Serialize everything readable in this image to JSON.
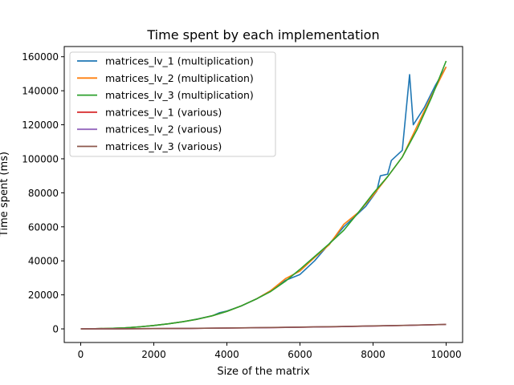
{
  "chart_data": {
    "type": "line",
    "title": "Time spent by each implementation",
    "xlabel": "Size of the matrix",
    "ylabel": "Time spent (ms)",
    "xlim": [
      -450,
      10450
    ],
    "ylim": [
      -8000,
      166000
    ],
    "xticks": [
      0,
      2000,
      4000,
      6000,
      8000,
      10000
    ],
    "yticks": [
      0,
      20000,
      40000,
      60000,
      80000,
      100000,
      120000,
      140000,
      160000
    ],
    "legend_position": "top-left",
    "grid": false,
    "series": [
      {
        "name": "matrices_lv_1 (multiplication)",
        "color": "#1f77b4",
        "x": [
          0,
          400,
          800,
          1200,
          1600,
          2000,
          2400,
          2800,
          3200,
          3600,
          3800,
          4000,
          4400,
          4800,
          5200,
          5600,
          6000,
          6200,
          6400,
          6600,
          6800,
          7200,
          7600,
          7800,
          8000,
          8100,
          8200,
          8400,
          8500,
          8800,
          9000,
          9100,
          9400,
          9700,
          10000
        ],
        "y": [
          0,
          100,
          300,
          600,
          1200,
          2000,
          3000,
          4200,
          5800,
          7700,
          9500,
          10500,
          13500,
          17500,
          22500,
          28500,
          32000,
          36000,
          40000,
          45000,
          50000,
          60000,
          68000,
          72000,
          78000,
          81000,
          90000,
          91000,
          99000,
          105000,
          149500,
          120000,
          130000,
          143000,
          154000
        ]
      },
      {
        "name": "matrices_lv_2 (multiplication)",
        "color": "#ff7f0e",
        "x": [
          0,
          400,
          800,
          1200,
          1600,
          2000,
          2400,
          2800,
          3200,
          3600,
          4000,
          4400,
          4800,
          5200,
          5600,
          6000,
          6400,
          6800,
          7200,
          7600,
          8000,
          8400,
          8800,
          9200,
          9600,
          10000
        ],
        "y": [
          0,
          100,
          300,
          600,
          1200,
          2000,
          3000,
          4200,
          5700,
          7700,
          10300,
          13600,
          17500,
          22500,
          29500,
          34000,
          42000,
          49500,
          61500,
          68500,
          78500,
          89500,
          101000,
          119000,
          137000,
          154000
        ]
      },
      {
        "name": "matrices_lv_3 (multiplication)",
        "color": "#2ca02c",
        "x": [
          0,
          400,
          800,
          1200,
          1600,
          2000,
          2400,
          2800,
          3200,
          3600,
          4000,
          4400,
          4800,
          5200,
          5600,
          6000,
          6400,
          6800,
          7200,
          7600,
          8000,
          8400,
          8800,
          9200,
          9600,
          10000
        ],
        "y": [
          0,
          100,
          300,
          600,
          1200,
          2000,
          3000,
          4200,
          5700,
          7700,
          10300,
          13600,
          17500,
          22000,
          28000,
          35000,
          42500,
          50000,
          58000,
          68500,
          79500,
          89500,
          101000,
          117000,
          136000,
          157500
        ]
      },
      {
        "name": "matrices_lv_1 (various)",
        "color": "#d62728",
        "x": [
          0,
          1000,
          2000,
          3000,
          4000,
          5000,
          6000,
          7000,
          8000,
          9000,
          10000
        ],
        "y": [
          0,
          50,
          150,
          300,
          500,
          700,
          1000,
          1300,
          1700,
          2100,
          2600
        ]
      },
      {
        "name": "matrices_lv_2 (various)",
        "color": "#9467bd",
        "x": [
          0,
          1000,
          2000,
          3000,
          4000,
          5000,
          6000,
          7000,
          8000,
          9000,
          10000
        ],
        "y": [
          0,
          50,
          150,
          300,
          500,
          700,
          1000,
          1300,
          1700,
          2100,
          2600
        ]
      },
      {
        "name": "matrices_lv_3 (various)",
        "color": "#8c564b",
        "x": [
          0,
          1000,
          2000,
          3000,
          4000,
          5000,
          6000,
          7000,
          8000,
          9000,
          10000
        ],
        "y": [
          0,
          60,
          170,
          320,
          520,
          750,
          1050,
          1350,
          1750,
          2150,
          2650
        ]
      }
    ]
  }
}
